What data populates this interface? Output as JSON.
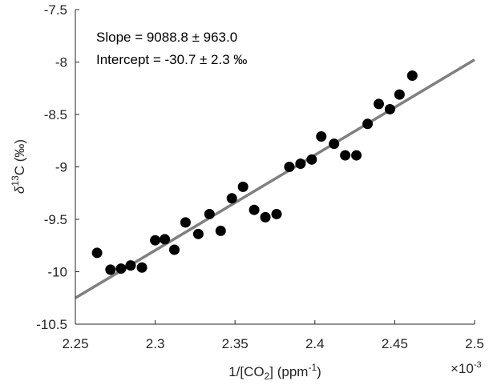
{
  "chart_data": {
    "type": "scatter",
    "xlabel": {
      "main": "1/[CO",
      "sub": "2",
      "mid": "] (ppm",
      "sup": "-1",
      "end": ")"
    },
    "ylabel": {
      "pre": "δ",
      "sup": "13",
      "post": "C (‰)"
    },
    "x_multiplier": {
      "main": "×10",
      "sup": "-3"
    },
    "xlim": [
      2.25,
      2.5
    ],
    "ylim": [
      -10.5,
      -7.5
    ],
    "xticks": [
      "2.25",
      "2.3",
      "2.35",
      "2.4",
      "2.45",
      "2.5"
    ],
    "yticks": [
      "-10.5",
      "-10",
      "-9.5",
      "-9",
      "-8.5",
      "-8",
      "-7.5"
    ],
    "annotations": [
      "Slope = 9088.8 ± 963.0",
      "Intercept = -30.7 ± 2.3 ‰"
    ],
    "fit_line": {
      "slope": 9088.8,
      "intercept": -30.7,
      "color": "#808080"
    },
    "marker_color": "#000000",
    "points": [
      [
        2.2636,
        -9.82
      ],
      [
        2.272,
        -9.98
      ],
      [
        2.2786,
        -9.97
      ],
      [
        2.2846,
        -9.94
      ],
      [
        2.2917,
        -9.96
      ],
      [
        2.3,
        -9.7
      ],
      [
        2.306,
        -9.69
      ],
      [
        2.312,
        -9.79
      ],
      [
        2.319,
        -9.53
      ],
      [
        2.327,
        -9.64
      ],
      [
        2.334,
        -9.45
      ],
      [
        2.341,
        -9.61
      ],
      [
        2.348,
        -9.3
      ],
      [
        2.355,
        -9.19
      ],
      [
        2.362,
        -9.41
      ],
      [
        2.369,
        -9.48
      ],
      [
        2.376,
        -9.45
      ],
      [
        2.384,
        -9.0
      ],
      [
        2.391,
        -8.97
      ],
      [
        2.398,
        -8.93
      ],
      [
        2.404,
        -8.71
      ],
      [
        2.412,
        -8.78
      ],
      [
        2.419,
        -8.89
      ],
      [
        2.426,
        -8.89
      ],
      [
        2.433,
        -8.59
      ],
      [
        2.44,
        -8.4
      ],
      [
        2.447,
        -8.45
      ],
      [
        2.453,
        -8.31
      ],
      [
        2.461,
        -8.13
      ]
    ]
  }
}
